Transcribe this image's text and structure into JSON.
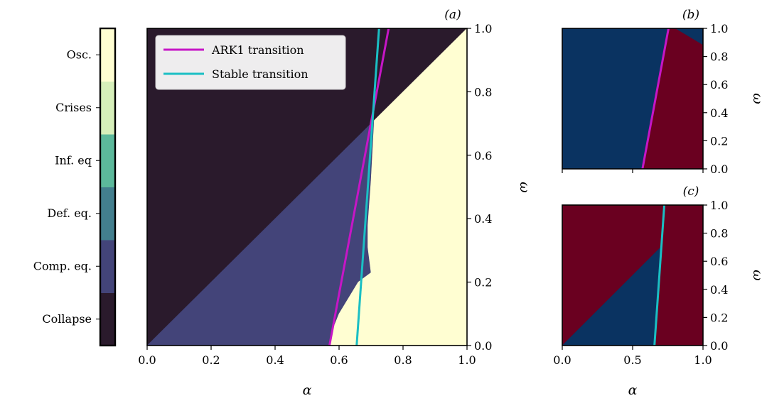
{
  "colorbar": {
    "labels": [
      "Collapse",
      "Comp. eq.",
      "Def. eq.",
      "Inf. eq",
      "Crises",
      "Osc."
    ],
    "colors": [
      "#2a1a2c",
      "#434479",
      "#437f8e",
      "#5cb99b",
      "#d6efba",
      "#fffed2"
    ]
  },
  "chart_data": [
    {
      "panel": "(a)",
      "type": "heatmap",
      "xlabel": "α",
      "ylabel": "ω",
      "xlim": [
        0,
        1
      ],
      "ylim": [
        0,
        1
      ],
      "xticks": [
        "0.0",
        "0.2",
        "0.4",
        "0.6",
        "0.8",
        "1.0"
      ],
      "yticks": [
        "0.0",
        "0.2",
        "0.4",
        "0.6",
        "0.8",
        "1.0"
      ],
      "regions": [
        {
          "category": "Collapse",
          "color": "#2a1a2c",
          "polygon": [
            [
              0,
              0
            ],
            [
              0,
              1
            ],
            [
              1,
              1
            ],
            [
              0,
              0
            ]
          ]
        },
        {
          "category": "Comp. eq.",
          "color": "#434479",
          "polygon": [
            [
              0,
              0
            ],
            [
              0.71,
              0.71
            ],
            [
              0.7,
              0.52
            ],
            [
              0.69,
              0.38
            ],
            [
              0.69,
              0.31
            ],
            [
              0.7,
              0.23
            ],
            [
              0.66,
              0.2
            ],
            [
              0.63,
              0.15
            ],
            [
              0.6,
              0.1
            ],
            [
              0.58,
              0.05
            ],
            [
              0.57,
              0
            ]
          ]
        },
        {
          "category": "Osc.",
          "color": "#fffed2",
          "polygon": [
            [
              0.57,
              0
            ],
            [
              0.58,
              0.05
            ],
            [
              0.6,
              0.1
            ],
            [
              0.63,
              0.15
            ],
            [
              0.66,
              0.2
            ],
            [
              0.7,
              0.23
            ],
            [
              0.69,
              0.31
            ],
            [
              0.69,
              0.38
            ],
            [
              0.7,
              0.52
            ],
            [
              0.71,
              0.71
            ],
            [
              1,
              1
            ],
            [
              1,
              0
            ]
          ]
        }
      ],
      "series": [
        {
          "name": "ARK1 transition",
          "color": "#c616c6",
          "x": [
            0.57,
            0.755
          ],
          "y": [
            0,
            1
          ]
        },
        {
          "name": "Stable transition",
          "color": "#1abfc4",
          "x": [
            0.655,
            0.725
          ],
          "y": [
            0,
            1
          ]
        }
      ],
      "legend": "top-left"
    },
    {
      "panel": "(b)",
      "type": "heatmap",
      "xlabel": "",
      "ylabel": "ω",
      "xlim": [
        0,
        1
      ],
      "ylim": [
        0,
        1
      ],
      "yticks": [
        "0.0",
        "0.2",
        "0.4",
        "0.6",
        "0.8",
        "1.0"
      ],
      "regions": [
        {
          "color": "#0a3361",
          "polygon": [
            [
              0,
              0
            ],
            [
              0,
              1
            ],
            [
              1,
              1
            ],
            [
              1,
              0
            ]
          ]
        },
        {
          "color": "#6a0020",
          "polygon": [
            [
              0.57,
              0
            ],
            [
              0.75,
              1
            ],
            [
              0.8,
              1
            ],
            [
              1,
              0.88
            ],
            [
              1,
              0
            ]
          ]
        }
      ],
      "series": [
        {
          "name": "ARK1 transition",
          "color": "#c616c6",
          "x": [
            0.57,
            0.755
          ],
          "y": [
            0,
            1
          ]
        }
      ]
    },
    {
      "panel": "(c)",
      "type": "heatmap",
      "xlabel": "α",
      "ylabel": "ω",
      "xlim": [
        0,
        1
      ],
      "ylim": [
        0,
        1
      ],
      "xticks": [
        "0.0",
        "0.5",
        "1.0"
      ],
      "yticks": [
        "0.0",
        "0.2",
        "0.4",
        "0.6",
        "0.8",
        "1.0"
      ],
      "regions": [
        {
          "color": "#6a0020",
          "polygon": [
            [
              0,
              0
            ],
            [
              0,
              1
            ],
            [
              1,
              1
            ],
            [
              1,
              0
            ]
          ]
        },
        {
          "color": "#0a3361",
          "polygon": [
            [
              0,
              0
            ],
            [
              0.71,
              0.71
            ],
            [
              0.655,
              0
            ]
          ]
        }
      ],
      "series": [
        {
          "name": "Stable transition",
          "color": "#1abfc4",
          "x": [
            0.655,
            0.725
          ],
          "y": [
            0,
            1
          ]
        }
      ]
    }
  ]
}
